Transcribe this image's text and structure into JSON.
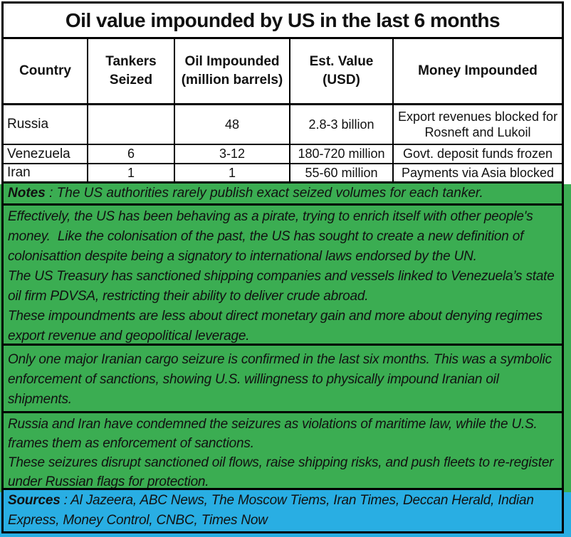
{
  "title": "Oil value impounded by US in the last 6 months",
  "table": {
    "headers": [
      "Country",
      "Tankers\nSeized",
      "Oil Impounded\n(million barrels)",
      "Est. Value\n(USD)",
      "Money Impounded"
    ],
    "rows": [
      {
        "country": "Russia",
        "tankers_seized": "",
        "oil_impounded": "48",
        "est_value": "2.8-3 billion",
        "money_impounded": "Export revenues blocked for Rosneft and Lukoil"
      },
      {
        "country": "Venezuela",
        "tankers_seized": "6",
        "oil_impounded": "3-12",
        "est_value": "180-720 million",
        "money_impounded": "Govt. deposit funds frozen"
      },
      {
        "country": "Iran",
        "tankers_seized": "1",
        "oil_impounded": "1",
        "est_value": "55-60 million",
        "money_impounded": "Payments via Asia blocked"
      }
    ]
  },
  "notes": {
    "label": "Notes",
    "separator": " : ",
    "text": "The US authorities rarely publish exact seized volumes for each tanker."
  },
  "commentary": {
    "block1": {
      "p1": "Effectively, the US has been behaving as a pirate, trying to enrich itself with other people's money.  Like the colonisation of the past, the US has sought to create a new definition of colonisattion despite being a signatory to international laws endorsed by the UN.",
      "p2": "The US Treasury has sanctioned shipping companies and vessels linked to Venezuela’s state oil firm PDVSA, restricting their ability to deliver crude abroad.",
      "p3": "These impoundments are less about direct monetary gain and more about denying regimes export revenue and geopolitical leverage."
    },
    "block2": {
      "p1": "Only one major Iranian cargo seizure is confirmed in the last six months. This was a symbolic enforcement of sanctions, showing U.S. willingness to physically impound Iranian oil shipments."
    },
    "block3": {
      "p1": "Russia and Iran have condemned the seizures as violations of maritime law, while the U.S. frames them as enforcement of sanctions.",
      "p2": "These seizures disrupt sanctioned oil flows, raise shipping risks, and push fleets to re-register under Russian flags for protection."
    }
  },
  "sources": {
    "label": "Sources",
    "separator": " : ",
    "text": "Al Jazeera, ABC News, The Moscow Tiems, Iran Times, Deccan Herald, Indian Express, Money Control, CNBC, Times Now"
  },
  "colors": {
    "green": "#3BAD52",
    "blue": "#29AEE3",
    "border": "#000000",
    "text": "#111111",
    "background": "#FFFFFF"
  }
}
